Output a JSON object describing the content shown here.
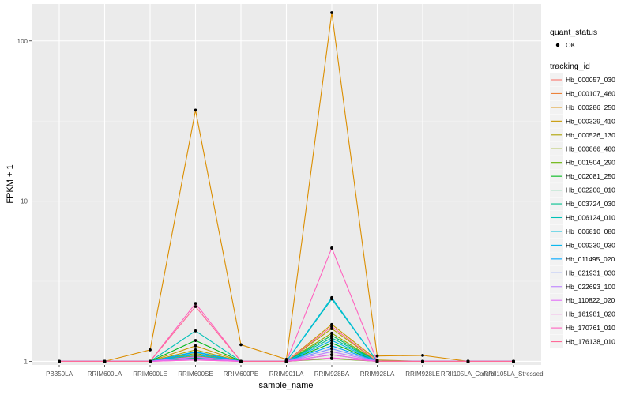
{
  "chart_data": {
    "type": "line",
    "xlabel": "sample_name",
    "ylabel": "FPKM + 1",
    "y_scale": "log10",
    "ylim": [
      0.95,
      170
    ],
    "y_ticks": [
      {
        "value": 1,
        "label": "1"
      },
      {
        "value": 10,
        "label": "10"
      },
      {
        "value": 100,
        "label": "100"
      }
    ],
    "categories": [
      "PB350LA",
      "RRIM600LA",
      "RRIM600LE",
      "RRIM600SE",
      "RRIM600PE",
      "RRIM901LA",
      "RRIM928BA",
      "RRIM928LA",
      "RRIM928LE",
      "RRII105LA_Control",
      "RRII105LA_Stressed"
    ],
    "legend_quant": {
      "title": "quant_status",
      "items": [
        "OK"
      ]
    },
    "legend_title": "tracking_id",
    "series": [
      {
        "name": "Hb_000057_030",
        "color": "#F8766D",
        "values": [
          1,
          1,
          1,
          1.02,
          1,
          1,
          1.05,
          1,
          1,
          1,
          1
        ]
      },
      {
        "name": "Hb_000107_460",
        "color": "#EC8239",
        "values": [
          1,
          1,
          1,
          1.04,
          1,
          1,
          1.1,
          1,
          1,
          1,
          1
        ]
      },
      {
        "name": "Hb_000286_250",
        "color": "#DB8E00",
        "values": [
          1,
          1,
          1.18,
          37,
          1.27,
          1.03,
          150,
          1.08,
          1.09,
          1,
          1
        ]
      },
      {
        "name": "Hb_000329_410",
        "color": "#C79800",
        "values": [
          1,
          1,
          1,
          1.25,
          1,
          1,
          1.7,
          1.02,
          1,
          1,
          1
        ]
      },
      {
        "name": "Hb_000526_130",
        "color": "#AEA200",
        "values": [
          1,
          1,
          1,
          1.18,
          1,
          1,
          1.6,
          1,
          1,
          1,
          1
        ]
      },
      {
        "name": "Hb_000866_480",
        "color": "#8FAA00",
        "values": [
          1,
          1,
          1,
          1.12,
          1,
          1,
          1.5,
          1,
          1,
          1,
          1
        ]
      },
      {
        "name": "Hb_001504_290",
        "color": "#64B200",
        "values": [
          1,
          1,
          1,
          1.08,
          1,
          1,
          1.04,
          1,
          1,
          1,
          1
        ]
      },
      {
        "name": "Hb_002081_250",
        "color": "#00B81B",
        "values": [
          1,
          1,
          1,
          1.35,
          1,
          1,
          1.3,
          1,
          1,
          1,
          1
        ]
      },
      {
        "name": "Hb_002200_010",
        "color": "#00BD5C",
        "values": [
          1,
          1,
          1,
          1.05,
          1,
          1,
          1.45,
          1,
          1,
          1,
          1
        ]
      },
      {
        "name": "Hb_003724_030",
        "color": "#00C08E",
        "values": [
          1,
          1,
          1,
          1.1,
          1,
          1,
          1.4,
          1,
          1,
          1,
          1
        ]
      },
      {
        "name": "Hb_006124_010",
        "color": "#00C1B7",
        "values": [
          1,
          1,
          1,
          1.55,
          1,
          1,
          2.45,
          1,
          1,
          1,
          1
        ]
      },
      {
        "name": "Hb_006810_080",
        "color": "#00BDDC",
        "values": [
          1,
          1,
          1,
          1.15,
          1,
          1,
          2.5,
          1,
          1,
          1,
          1
        ]
      },
      {
        "name": "Hb_009230_030",
        "color": "#00B5EE",
        "values": [
          1,
          1,
          1,
          1.1,
          1,
          1,
          1.35,
          1,
          1,
          1,
          1
        ]
      },
      {
        "name": "Hb_011495_020",
        "color": "#00A7FF",
        "values": [
          1,
          1,
          1,
          1.14,
          1,
          1,
          1.25,
          1,
          1,
          1,
          1
        ]
      },
      {
        "name": "Hb_021931_030",
        "color": "#7F96FF",
        "values": [
          1,
          1,
          1,
          1.06,
          1,
          1,
          1.2,
          1,
          1,
          1,
          1
        ]
      },
      {
        "name": "Hb_022693_100",
        "color": "#BC81FF",
        "values": [
          1,
          1,
          1,
          1.03,
          1,
          1,
          1.15,
          1,
          1,
          1,
          1
        ]
      },
      {
        "name": "Hb_110822_020",
        "color": "#E26EF7",
        "values": [
          1,
          1,
          1,
          1.07,
          1,
          1,
          1.1,
          1,
          1,
          1,
          1
        ]
      },
      {
        "name": "Hb_161981_020",
        "color": "#F863DF",
        "values": [
          1,
          1,
          1,
          1.02,
          1,
          1,
          1.05,
          1,
          1,
          1,
          1
        ]
      },
      {
        "name": "Hb_170761_010",
        "color": "#FF62BF",
        "values": [
          1,
          1,
          1,
          2.3,
          1,
          1,
          5.1,
          1,
          1,
          1,
          1
        ]
      },
      {
        "name": "Hb_176138_010",
        "color": "#FF6A98",
        "values": [
          1,
          1,
          1,
          2.2,
          1,
          1,
          1.65,
          1,
          1,
          1,
          1
        ]
      }
    ]
  }
}
